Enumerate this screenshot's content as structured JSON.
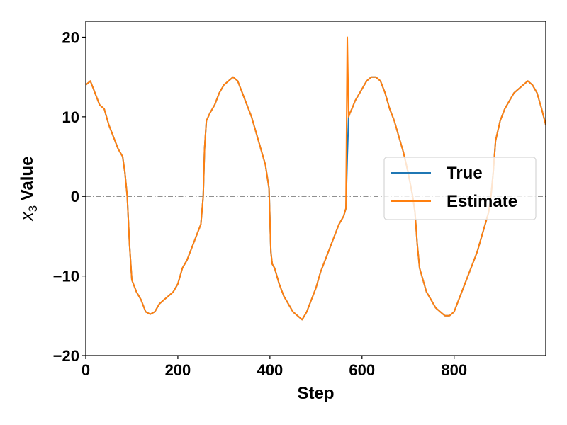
{
  "chart_data": {
    "type": "line",
    "xlabel": "Step",
    "ylabel_prefix": "x",
    "ylabel_sub": "3",
    "ylabel_suffix": " Value",
    "xlim": [
      0,
      999
    ],
    "ylim": [
      -20,
      22
    ],
    "xticks": [
      0,
      200,
      400,
      600,
      800
    ],
    "yticks": [
      -20,
      -10,
      0,
      10,
      20
    ],
    "xtick_labels": [
      "0",
      "200",
      "400",
      "600",
      "800"
    ],
    "ytick_labels": [
      "−20",
      "−10",
      "0",
      "10",
      "20"
    ],
    "reference_line": {
      "y": 0,
      "style": "dash-dot",
      "color": "#808080"
    },
    "legend": {
      "placement": "center-right",
      "entries": [
        "True",
        "Estimate"
      ]
    },
    "grid": false,
    "series": [
      {
        "name": "True",
        "color": "#1f77b4",
        "x": [
          0,
          10,
          20,
          30,
          40,
          50,
          60,
          70,
          75,
          80,
          85,
          90,
          95,
          100,
          110,
          120,
          130,
          140,
          150,
          160,
          170,
          180,
          190,
          200,
          210,
          220,
          230,
          240,
          250,
          255,
          258,
          262,
          266,
          270,
          280,
          290,
          300,
          310,
          320,
          330,
          340,
          350,
          360,
          370,
          380,
          390,
          398,
          402,
          405,
          410,
          420,
          430,
          440,
          450,
          460,
          470,
          480,
          490,
          500,
          510,
          520,
          530,
          540,
          550,
          560,
          565,
          568,
          571,
          574,
          578,
          585,
          600,
          610,
          620,
          630,
          640,
          650,
          660,
          670,
          680,
          690,
          700,
          710,
          715,
          720,
          725,
          730,
          740,
          750,
          760,
          770,
          780,
          790,
          800,
          810,
          820,
          830,
          840,
          850,
          860,
          870,
          875,
          880,
          885,
          890,
          900,
          910,
          920,
          930,
          940,
          950,
          960,
          970,
          980,
          990,
          999
        ],
        "y": [
          14,
          14.5,
          13,
          11.5,
          11,
          9,
          7.5,
          6,
          5.5,
          5,
          3,
          0,
          -6,
          -10.5,
          -12,
          -13,
          -14.5,
          -14.8,
          -14.5,
          -13.5,
          -13,
          -12.5,
          -12,
          -11,
          -9,
          -8,
          -6.5,
          -5,
          -3.5,
          0,
          6,
          9.5,
          10,
          10.5,
          11.5,
          13,
          14,
          14.5,
          15,
          14.5,
          13,
          11.5,
          10,
          8,
          6,
          4,
          1,
          -7,
          -8.5,
          -9,
          -11,
          -12.5,
          -13.5,
          -14.5,
          -15,
          -15.5,
          -14.5,
          -13,
          -11.5,
          -9.5,
          -8,
          -6.5,
          -5,
          -3.5,
          -2.5,
          -1.5,
          5,
          10,
          10.5,
          11,
          12,
          13.5,
          14.5,
          15,
          15,
          14.5,
          13,
          11,
          9.5,
          7.5,
          5.5,
          3,
          0,
          -2,
          -6,
          -9,
          -10,
          -12,
          -13,
          -14,
          -14.5,
          -15,
          -15,
          -14.5,
          -13,
          -11.5,
          -10,
          -8.5,
          -7,
          -5,
          -3,
          -2,
          0,
          3,
          7,
          9.5,
          11,
          12,
          13,
          13.5,
          14,
          14.5,
          14,
          13,
          11,
          9
        ]
      },
      {
        "name": "Estimate",
        "color": "#ff7f0e",
        "x": [
          0,
          10,
          20,
          30,
          40,
          50,
          60,
          70,
          75,
          80,
          85,
          90,
          95,
          100,
          110,
          120,
          130,
          140,
          150,
          160,
          170,
          180,
          190,
          200,
          210,
          220,
          230,
          240,
          250,
          255,
          258,
          262,
          266,
          270,
          280,
          290,
          300,
          310,
          320,
          330,
          340,
          350,
          360,
          370,
          380,
          390,
          398,
          402,
          405,
          410,
          420,
          430,
          440,
          450,
          460,
          470,
          480,
          490,
          500,
          510,
          520,
          530,
          540,
          550,
          560,
          565,
          568,
          571,
          574,
          578,
          585,
          600,
          610,
          620,
          630,
          640,
          650,
          660,
          670,
          680,
          690,
          700,
          710,
          715,
          720,
          725,
          730,
          740,
          750,
          760,
          770,
          780,
          790,
          800,
          810,
          820,
          830,
          840,
          850,
          860,
          870,
          875,
          880,
          885,
          890,
          900,
          910,
          920,
          930,
          940,
          950,
          960,
          970,
          980,
          990,
          999
        ],
        "y": [
          14,
          14.5,
          13,
          11.5,
          11,
          9,
          7.5,
          6,
          5.5,
          5,
          3,
          0,
          -6,
          -10.5,
          -12,
          -13,
          -14.5,
          -14.8,
          -14.5,
          -13.5,
          -13,
          -12.5,
          -12,
          -11,
          -9,
          -8,
          -6.5,
          -5,
          -3.5,
          0,
          6,
          9.5,
          10,
          10.5,
          11.5,
          13,
          14,
          14.5,
          15,
          14.5,
          13,
          11.5,
          10,
          8,
          6,
          4,
          1,
          -7,
          -8.5,
          -9,
          -11,
          -12.5,
          -13.5,
          -14.5,
          -15,
          -15.5,
          -14.5,
          -13,
          -11.5,
          -9.5,
          -8,
          -6.5,
          -5,
          -3.5,
          -2.5,
          -1.5,
          20,
          10,
          10.5,
          11,
          12,
          13.5,
          14.5,
          15,
          15,
          14.5,
          13,
          11,
          9.5,
          7.5,
          5.5,
          3,
          0,
          -2,
          -6,
          -9,
          -10,
          -12,
          -13,
          -14,
          -14.5,
          -15,
          -15,
          -14.5,
          -13,
          -11.5,
          -10,
          -8.5,
          -7,
          -5,
          -3,
          -2,
          0,
          3,
          7,
          9.5,
          11,
          12,
          13,
          13.5,
          14,
          14.5,
          14,
          13,
          11,
          9
        ]
      }
    ]
  }
}
